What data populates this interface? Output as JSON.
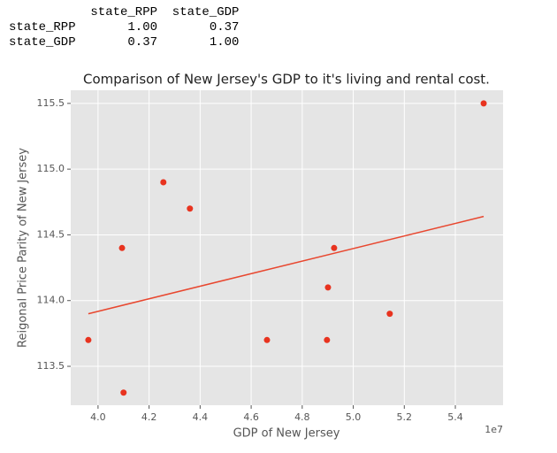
{
  "table": {
    "columns": [
      "state_RPP",
      "state_GDP"
    ],
    "rows": [
      {
        "label": "state_RPP",
        "values": [
          "1.00",
          "0.37"
        ]
      },
      {
        "label": "state_GDP",
        "values": [
          "0.37",
          "1.00"
        ]
      }
    ]
  },
  "chart_data": {
    "type": "scatter",
    "title": "Comparison of New Jersey's GDP to it's living and rental cost.",
    "x_label": "GDP of New Jersey",
    "y_label": "Reigonal Price Parity of New Jersey",
    "x_offset_label": "1e7",
    "x": [
      3.962,
      4.094,
      4.1,
      4.256,
      4.36,
      4.662,
      4.897,
      4.901,
      4.925,
      5.143,
      5.511
    ],
    "values": [
      113.7,
      114.4,
      113.3,
      114.9,
      114.7,
      113.7,
      113.7,
      114.1,
      114.4,
      113.9,
      115.5
    ],
    "color": "#e8331f",
    "fit_line": {
      "x": [
        3.962,
        5.511
      ],
      "y": [
        113.9,
        114.64
      ],
      "color": "#e8472f"
    },
    "xlim": [
      3.893,
      5.587
    ],
    "ylim": [
      113.204,
      115.6
    ],
    "xticks": [
      {
        "value": 4.0,
        "label": "4.0"
      },
      4.2,
      4.4,
      4.6,
      4.8,
      {
        "value": 5.0,
        "label": "5.0"
      },
      5.2,
      5.4
    ],
    "yticks": [
      113.5,
      {
        "value": 114.0,
        "label": "114.0"
      },
      114.5,
      {
        "value": 115.0,
        "label": "115.0"
      },
      115.5
    ],
    "grid": true
  }
}
